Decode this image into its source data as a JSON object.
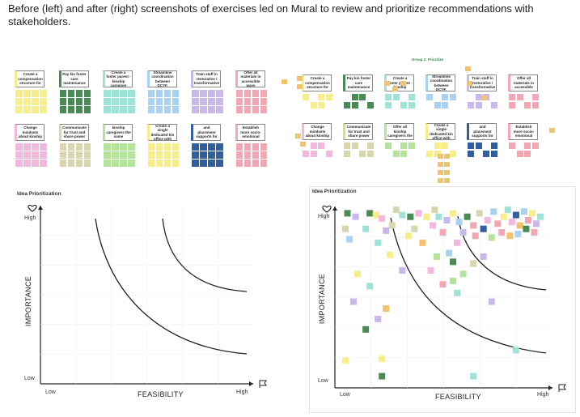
{
  "caption": "Before (left) and after (right) screenshots of exercises led on Mural to review and prioritize recommendations with stakeholders.",
  "colors": {
    "yellow": "#f7ee8a",
    "green": "#4a8a55",
    "teal": "#9fe3d8",
    "blue": "#a8d2f0",
    "lavender": "#c8b8ec",
    "pink": "#f2a7b4",
    "lightpink": "#f3b8dd",
    "khaki": "#d8d6ae",
    "lightgreen": "#b5e39c",
    "navy": "#2f5f9e",
    "orange": "#f3c26a",
    "axis": "#222222",
    "curve": "#222222"
  },
  "recommendations_row1": [
    {
      "label": "Create a compensation structure for",
      "color": "yellow"
    },
    {
      "label": "Pay kin foster care maintenance",
      "color": "green"
    },
    {
      "label": "Create a foster parent - kinship caregiver",
      "color": "teal"
    },
    {
      "label": "Streamline coordination between DCYF,",
      "color": "blue"
    },
    {
      "label": "Train staff in restorative / transformative",
      "color": "lavender"
    },
    {
      "label": "Offer all materials in accessible ways",
      "color": "pink"
    }
  ],
  "recommendations_row2": [
    {
      "label": "Change mindsets about kinship",
      "color": "lightpink"
    },
    {
      "label": "Communicate for trust and share power",
      "color": "khaki"
    },
    {
      "label": "Offer all kinship caregivers the same supports",
      "color": "lightgreen"
    },
    {
      "label": "Create a single dedicated kin office with",
      "color": "yellow"
    },
    {
      "label": "Offer services and placement supports for all",
      "color": "navy"
    },
    {
      "label": "Establish more socio-emotional",
      "color": "pink"
    }
  ],
  "recommendations_row1_after": [
    {
      "label": "Create a compensation structure for",
      "color": "yellow"
    },
    {
      "label": "Pay kin foster care maintenance",
      "color": "green"
    },
    {
      "label": "Create a foster parent - kinship",
      "color": "teal"
    },
    {
      "label": "Streamline coordination between DCYF,",
      "color": "blue"
    },
    {
      "label": "Train staff in restorative / transformative",
      "color": "lavender"
    },
    {
      "label": "Offer all materials in accessible",
      "color": "pink"
    }
  ],
  "recommendations_row2_after": [
    {
      "label": "Change mindsets about kinship",
      "color": "lightpink"
    },
    {
      "label": "Communicate for trust and share power",
      "color": "khaki"
    },
    {
      "label": "Offer all kinship caregivers the",
      "color": "lightgreen"
    },
    {
      "label": "Create a single dedicated kin office with",
      "color": "yellow"
    },
    {
      "label": "Offer services and placement supports for all",
      "color": "navy"
    },
    {
      "label": "Establish more socio-emotional",
      "color": "pink"
    }
  ],
  "group_heading": "Group 2: Prioritize",
  "charts": {
    "title": "Idea Prioritization",
    "y_axis_title": "IMPORTANCE",
    "x_axis_title": "FEASIBILITY",
    "y_high": "High",
    "y_low": "Low",
    "x_low": "Low",
    "x_high": "High",
    "y_icon": "heart-icon",
    "x_icon": "flag-icon"
  },
  "chart_data": {
    "type": "scatter",
    "title": "Idea Prioritization",
    "xlabel": "FEASIBILITY",
    "ylabel": "IMPORTANCE",
    "x_ticks": [
      "Low",
      "High"
    ],
    "y_ticks": [
      "Low",
      "High"
    ],
    "series": [
      {
        "name": "",
        "points": [
          [
            0.03,
            0.97,
            "green"
          ],
          [
            0.07,
            0.95,
            "lavender"
          ],
          [
            0.02,
            0.88,
            "khaki"
          ],
          [
            0.04,
            0.82,
            "blue"
          ],
          [
            0.14,
            0.97,
            "green"
          ],
          [
            0.17,
            0.96,
            "yellow"
          ],
          [
            0.2,
            0.94,
            "lightpink"
          ],
          [
            0.12,
            0.88,
            "teal"
          ],
          [
            0.22,
            0.87,
            "lavender"
          ],
          [
            0.25,
            0.9,
            "khaki"
          ],
          [
            0.18,
            0.8,
            "teal"
          ],
          [
            0.24,
            0.73,
            "yellow"
          ],
          [
            0.3,
            0.96,
            "teal"
          ],
          [
            0.34,
            0.95,
            "green"
          ],
          [
            0.38,
            0.97,
            "lightpink"
          ],
          [
            0.42,
            0.95,
            "yellow"
          ],
          [
            0.36,
            0.88,
            "khaki"
          ],
          [
            0.33,
            0.84,
            "yellow"
          ],
          [
            0.45,
            0.9,
            "lightpink"
          ],
          [
            0.48,
            0.95,
            "teal"
          ],
          [
            0.5,
            0.86,
            "pink"
          ],
          [
            0.52,
            0.93,
            "lavender"
          ],
          [
            0.55,
            0.97,
            "yellow"
          ],
          [
            0.58,
            0.92,
            "blue"
          ],
          [
            0.6,
            0.86,
            "lavender"
          ],
          [
            0.62,
            0.95,
            "green"
          ],
          [
            0.65,
            0.9,
            "pink"
          ],
          [
            0.68,
            0.97,
            "khaki"
          ],
          [
            0.7,
            0.88,
            "navy"
          ],
          [
            0.72,
            0.93,
            "lightpink"
          ],
          [
            0.75,
            0.98,
            "blue"
          ],
          [
            0.77,
            0.91,
            "pink"
          ],
          [
            0.8,
            0.95,
            "yellow"
          ],
          [
            0.82,
            0.99,
            "teal"
          ],
          [
            0.84,
            0.92,
            "lightpink"
          ],
          [
            0.86,
            0.96,
            "navy"
          ],
          [
            0.88,
            0.9,
            "orange"
          ],
          [
            0.9,
            0.98,
            "blue"
          ],
          [
            0.92,
            0.93,
            "pink"
          ],
          [
            0.94,
            0.97,
            "yellow"
          ],
          [
            0.96,
            0.91,
            "lavender"
          ],
          [
            0.98,
            0.95,
            "teal"
          ],
          [
            0.79,
            0.86,
            "pink"
          ],
          [
            0.83,
            0.84,
            "orange"
          ],
          [
            0.87,
            0.85,
            "blue"
          ],
          [
            0.91,
            0.88,
            "green"
          ],
          [
            0.95,
            0.86,
            "pink"
          ],
          [
            0.74,
            0.83,
            "lightgreen"
          ],
          [
            0.66,
            0.84,
            "pink"
          ],
          [
            0.57,
            0.8,
            "lightpink"
          ],
          [
            0.53,
            0.74,
            "blue"
          ],
          [
            0.47,
            0.72,
            "lightgreen"
          ],
          [
            0.55,
            0.69,
            "green"
          ],
          [
            0.6,
            0.62,
            "lightgreen"
          ],
          [
            0.65,
            0.68,
            "khaki"
          ],
          [
            0.7,
            0.72,
            "lavender"
          ],
          [
            0.3,
            0.64,
            "lavender"
          ],
          [
            0.14,
            0.55,
            "teal"
          ],
          [
            0.06,
            0.46,
            "lavender"
          ],
          [
            0.22,
            0.42,
            "orange"
          ],
          [
            0.18,
            0.36,
            "lavender"
          ],
          [
            0.12,
            0.3,
            "green"
          ],
          [
            0.5,
            0.56,
            "pink"
          ],
          [
            0.44,
            0.64,
            "lightpink"
          ],
          [
            0.57,
            0.51,
            "teal"
          ],
          [
            0.74,
            0.46,
            "lavender"
          ],
          [
            0.86,
            0.18,
            "teal"
          ],
          [
            0.02,
            0.12,
            "yellow"
          ],
          [
            0.2,
            0.13,
            "yellow"
          ],
          [
            0.2,
            0.03,
            "green"
          ],
          [
            0.65,
            0.03,
            "teal"
          ],
          [
            0.4,
            0.8,
            "orange"
          ],
          [
            0.46,
            0.99,
            "khaki"
          ],
          [
            0.27,
            0.99,
            "khaki"
          ],
          [
            0.55,
            0.58,
            "lightgreen"
          ],
          [
            0.08,
            0.62,
            "yellow"
          ]
        ]
      }
    ],
    "curves": "two concave boundary curves dividing priority zones",
    "xlim": [
      0,
      1
    ],
    "ylim": [
      0,
      1
    ],
    "grid": false
  }
}
